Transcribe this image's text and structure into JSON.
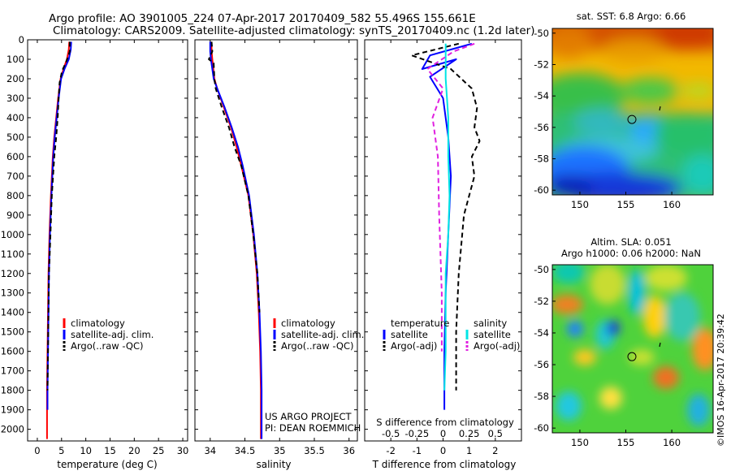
{
  "title_lines": [
    "Argo profile: AO 3901005_224 07-Apr-2017 20170409_582 55.496S 155.661E",
    "Climatology: CARS2009. Satellite-adjusted climatology: synTS_20170409.nc (1.2d later)"
  ],
  "colors": {
    "climatology": "#ff0000",
    "satellite": "#0000ff",
    "argo": "#000000",
    "sal_satellite": "#00e5e5",
    "sal_argo": "#e020e0"
  },
  "footer_credit": "©IMOS 16-Apr-2017 20:39:42",
  "chart_data": [
    {
      "type": "line",
      "xlabel": "temperature (deg C)",
      "xlim": [
        -2,
        31
      ],
      "xticks": [
        0,
        5,
        10,
        15,
        20,
        25,
        30
      ],
      "ylim": [
        2060,
        0
      ],
      "yticks": [
        0,
        100,
        200,
        300,
        400,
        500,
        600,
        700,
        800,
        900,
        1000,
        1100,
        1200,
        1300,
        1400,
        1500,
        1600,
        1700,
        1800,
        1900,
        2000
      ],
      "legend": [
        "climatology",
        "satellite-adj. clim.",
        "Argo(..raw -QC)"
      ],
      "series": [
        {
          "name": "climatology",
          "style": "solid",
          "color": "#ff0000",
          "x": [
            6.6,
            6.5,
            6.1,
            5.4,
            4.8,
            4.3,
            3.9,
            3.5,
            3.2,
            2.8,
            2.5,
            2.3,
            2.2,
            2.1,
            2.0,
            2.0
          ],
          "y": [
            10,
            50,
            100,
            150,
            200,
            300,
            400,
            500,
            600,
            800,
            1000,
            1200,
            1400,
            1600,
            1800,
            2050
          ]
        },
        {
          "name": "satellite-adj. clim.",
          "style": "solid",
          "color": "#0000ff",
          "x": [
            7.0,
            6.9,
            6.5,
            5.6,
            4.9,
            4.4,
            4.0,
            3.6,
            3.3,
            2.9,
            2.6,
            2.4,
            2.3,
            2.2,
            2.1,
            2.1
          ],
          "y": [
            10,
            50,
            100,
            150,
            200,
            300,
            400,
            500,
            600,
            800,
            1000,
            1200,
            1400,
            1600,
            1800,
            1900
          ]
        },
        {
          "name": "Argo(..raw -QC)",
          "style": "dashed",
          "color": "#000000",
          "x": [
            6.7,
            6.7,
            6.0,
            5.1,
            4.6,
            4.4,
            4.2,
            3.9,
            3.5,
            3.0,
            2.7,
            2.4,
            2.3,
            2.2,
            2.1
          ],
          "y": [
            10,
            60,
            110,
            160,
            220,
            300,
            400,
            500,
            600,
            800,
            1000,
            1200,
            1400,
            1600,
            1800
          ]
        }
      ]
    },
    {
      "type": "line",
      "xlabel": "salinity",
      "xlim": [
        33.78,
        36.12
      ],
      "xticks": [
        34,
        34.5,
        35,
        35.5,
        36
      ],
      "ylim": [
        2060,
        0
      ],
      "legend": [
        "climatology",
        "satellite-adj. clim.",
        "Argo(..raw -QC)"
      ],
      "annotations": [
        "US ARGO PROJECT",
        "PI: DEAN ROEMMICH"
      ],
      "series": [
        {
          "name": "climatology",
          "style": "solid",
          "color": "#ff0000",
          "x": [
            34.02,
            34.02,
            34.03,
            34.06,
            34.1,
            34.2,
            34.3,
            34.38,
            34.45,
            34.55,
            34.62,
            34.67,
            34.7,
            34.72,
            34.73,
            34.73
          ],
          "y": [
            10,
            60,
            100,
            200,
            250,
            350,
            450,
            550,
            650,
            800,
            1000,
            1200,
            1400,
            1600,
            1800,
            2050
          ]
        },
        {
          "name": "satellite-adj. clim.",
          "style": "solid",
          "color": "#0000ff",
          "x": [
            34.0,
            34.0,
            34.01,
            34.05,
            34.1,
            34.21,
            34.31,
            34.4,
            34.47,
            34.56,
            34.63,
            34.68,
            34.71,
            34.73,
            34.74,
            34.74
          ],
          "y": [
            10,
            60,
            100,
            200,
            250,
            350,
            450,
            550,
            650,
            800,
            1000,
            1200,
            1400,
            1600,
            1800,
            2050
          ]
        },
        {
          "name": "Argo(..raw -QC)",
          "style": "dashed",
          "color": "#000000",
          "x": [
            34.02,
            34.03,
            33.98,
            34.05,
            34.06,
            34.08,
            34.17,
            34.27,
            34.35,
            34.45,
            34.55,
            34.62,
            34.68,
            34.71
          ],
          "y": [
            10,
            60,
            100,
            120,
            200,
            250,
            350,
            450,
            550,
            650,
            800,
            1000,
            1200,
            1400
          ]
        }
      ]
    },
    {
      "type": "line",
      "xlabel": "T difference from climatology",
      "xlabel_top": "S difference from climatology",
      "xlim": [
        -3,
        3
      ],
      "xticks": [
        -2,
        -1,
        0,
        1,
        2
      ],
      "xticks_top": [
        "-0.5",
        "-0.25",
        "0",
        "0.25",
        "0.5"
      ],
      "ylim": [
        2060,
        0
      ],
      "legend_headers": [
        "temperature",
        "salinity"
      ],
      "legend": [
        "satellite",
        "Argo(-adj)",
        "satellite",
        "Argo(-adj)"
      ],
      "series": [
        {
          "name": "temperature satellite",
          "style": "solid",
          "color": "#0000ff",
          "x": [
            1.1,
            0.3,
            -0.5,
            -0.8,
            0.5,
            -0.5,
            0.0,
            0.2,
            0.3,
            0.2,
            0.1,
            0.05,
            0.05
          ],
          "y": [
            20,
            50,
            80,
            150,
            100,
            190,
            300,
            500,
            700,
            1000,
            1300,
            1600,
            1900
          ]
        },
        {
          "name": "temperature Argo(-adj)",
          "style": "dashed",
          "color": "#000000",
          "x": [
            0.6,
            -1.2,
            0.3,
            1.1,
            1.3,
            1.2,
            1.4,
            1.1,
            1.2,
            0.8,
            0.6,
            0.5,
            0.5
          ],
          "y": [
            20,
            80,
            150,
            250,
            350,
            450,
            520,
            600,
            700,
            900,
            1200,
            1500,
            1800
          ]
        },
        {
          "name": "salinity satellite",
          "style": "solid",
          "color": "#00e5e5",
          "x": [
            0.1,
            0.1,
            0.2,
            0.2,
            0.25,
            0.2,
            0.1,
            0.1,
            0.1,
            0.05
          ],
          "y": [
            20,
            200,
            400,
            600,
            800,
            1000,
            1200,
            1400,
            1600,
            1800
          ]
        },
        {
          "name": "salinity Argo(-adj)",
          "style": "dashed",
          "color": "#e020e0",
          "x": [
            1.2,
            0.4,
            -0.6,
            0.0,
            -0.4,
            -0.2,
            -0.15,
            -0.05,
            -0.05
          ],
          "y": [
            20,
            60,
            150,
            250,
            400,
            600,
            900,
            1300,
            1600
          ]
        }
      ]
    },
    {
      "type": "heatmap",
      "title": "sat. SST: 6.8 Argo: 6.66",
      "xlim": [
        147,
        164.5
      ],
      "ylim": [
        -60.3,
        -49.7
      ],
      "xticks": [
        150,
        155,
        160
      ],
      "yticks": [
        -50,
        -52,
        -54,
        -56,
        -58,
        -60
      ],
      "marker": {
        "lon": 155.661,
        "lat": -55.496
      }
    },
    {
      "type": "heatmap",
      "title_lines": [
        "Altim. SLA: 0.051",
        "Argo h1000: 0.06 h2000: NaN"
      ],
      "xlim": [
        147,
        164.5
      ],
      "ylim": [
        -60.3,
        -49.7
      ],
      "xticks": [
        150,
        155,
        160
      ],
      "yticks": [
        -50,
        -52,
        -54,
        -56,
        -58,
        -60
      ],
      "marker": {
        "lon": 155.661,
        "lat": -55.496
      }
    }
  ]
}
